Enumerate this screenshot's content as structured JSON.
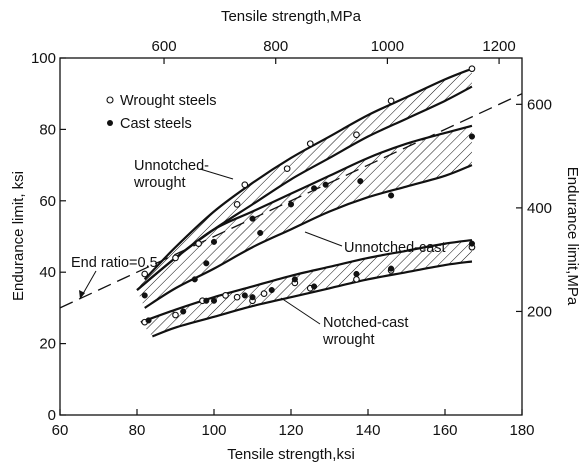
{
  "chart_data": {
    "type": "scatter",
    "x_bottom": {
      "label": "Tensile strength,ksi",
      "range": [
        60,
        180
      ],
      "ticks": [
        60,
        80,
        100,
        120,
        140,
        160,
        180
      ]
    },
    "x_top": {
      "label": "Tensile strength,MPa",
      "ticks": [
        600,
        800,
        1000,
        1200
      ]
    },
    "y_left": {
      "label": "Endurance limit, ksi",
      "range": [
        0,
        100
      ],
      "ticks": [
        0,
        20,
        40,
        60,
        80,
        100
      ]
    },
    "y_right": {
      "label": "Endurance limit,MPa",
      "ticks": [
        200,
        400,
        600
      ]
    },
    "legend": {
      "placement": "top-left",
      "entries": [
        {
          "marker": "open-circle",
          "label": "Wrought steels"
        },
        {
          "marker": "filled-circle",
          "label": "Cast steels"
        }
      ]
    },
    "reference_line": {
      "label": "End ratio=0.5",
      "style": "dashed",
      "points": [
        [
          60,
          30
        ],
        [
          180,
          90
        ]
      ]
    },
    "bands": [
      {
        "label": "Unnotched-\nwrought",
        "upper": [
          [
            82,
            38
          ],
          [
            90,
            47
          ],
          [
            100,
            57
          ],
          [
            110,
            65
          ],
          [
            120,
            72
          ],
          [
            130,
            78
          ],
          [
            140,
            84
          ],
          [
            150,
            89
          ],
          [
            160,
            94
          ],
          [
            167,
            97
          ]
        ],
        "lower": [
          [
            80,
            35
          ],
          [
            90,
            44
          ],
          [
            100,
            52
          ],
          [
            110,
            59
          ],
          [
            120,
            66
          ],
          [
            130,
            72
          ],
          [
            140,
            78
          ],
          [
            150,
            83
          ],
          [
            160,
            88
          ],
          [
            167,
            92
          ]
        ]
      },
      {
        "label": "Unnotched-cast",
        "upper": [
          [
            80,
            35
          ],
          [
            90,
            44
          ],
          [
            100,
            52
          ],
          [
            110,
            57
          ],
          [
            120,
            62
          ],
          [
            130,
            67
          ],
          [
            140,
            72
          ],
          [
            150,
            76
          ],
          [
            160,
            79
          ],
          [
            167,
            81
          ]
        ],
        "lower": [
          [
            82,
            30
          ],
          [
            90,
            35.5
          ],
          [
            100,
            41
          ],
          [
            110,
            47
          ],
          [
            120,
            52
          ],
          [
            130,
            57
          ],
          [
            140,
            61
          ],
          [
            150,
            64
          ],
          [
            160,
            67
          ],
          [
            167,
            70
          ]
        ]
      },
      {
        "label": "Notched-cast\nwrought",
        "upper": [
          [
            81,
            26
          ],
          [
            90,
            29.5
          ],
          [
            100,
            33
          ],
          [
            110,
            36
          ],
          [
            120,
            39
          ],
          [
            130,
            41.5
          ],
          [
            140,
            44
          ],
          [
            150,
            46
          ],
          [
            160,
            48
          ],
          [
            167,
            49
          ]
        ],
        "lower": [
          [
            84,
            22
          ],
          [
            90,
            24.5
          ],
          [
            100,
            27.5
          ],
          [
            110,
            30.5
          ],
          [
            120,
            33
          ],
          [
            130,
            35.5
          ],
          [
            140,
            38
          ],
          [
            150,
            40
          ],
          [
            160,
            42
          ],
          [
            167,
            43
          ]
        ]
      }
    ],
    "series": [
      {
        "name": "Wrought steels",
        "marker": "open-circle",
        "points": [
          [
            82,
            39.5
          ],
          [
            90,
            44
          ],
          [
            96,
            48
          ],
          [
            106,
            59
          ],
          [
            108,
            64.5
          ],
          [
            119,
            69
          ],
          [
            125,
            76
          ],
          [
            137,
            78.5
          ],
          [
            146,
            88
          ],
          [
            167,
            97
          ],
          [
            82,
            26
          ],
          [
            90,
            28
          ],
          [
            97,
            32
          ],
          [
            103,
            33.5
          ],
          [
            106,
            33
          ],
          [
            110,
            32
          ],
          [
            113,
            34
          ],
          [
            121,
            37
          ],
          [
            125,
            35.5
          ],
          [
            137,
            38
          ],
          [
            146,
            40.5
          ],
          [
            167,
            47
          ]
        ]
      },
      {
        "name": "Cast steels",
        "marker": "filled-circle",
        "points": [
          [
            82,
            33.5
          ],
          [
            95,
            38
          ],
          [
            98,
            42.5
          ],
          [
            100,
            48.5
          ],
          [
            110,
            55
          ],
          [
            112,
            51
          ],
          [
            120,
            59
          ],
          [
            126,
            63.5
          ],
          [
            129,
            64.5
          ],
          [
            138,
            65.5
          ],
          [
            146,
            61.5
          ],
          [
            167,
            78
          ],
          [
            83,
            26.5
          ],
          [
            92,
            29
          ],
          [
            98,
            32
          ],
          [
            100,
            32
          ],
          [
            108,
            33.5
          ],
          [
            110,
            33
          ],
          [
            115,
            35
          ],
          [
            121,
            38
          ],
          [
            126,
            36
          ],
          [
            137,
            39.5
          ],
          [
            146,
            41
          ],
          [
            167,
            48
          ]
        ]
      }
    ]
  }
}
